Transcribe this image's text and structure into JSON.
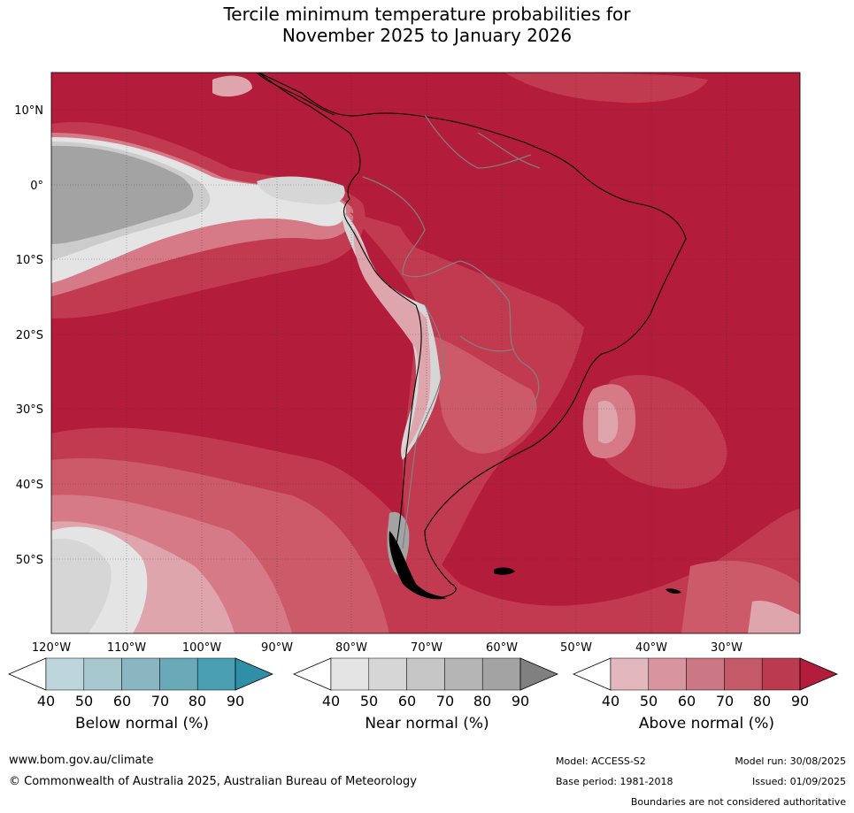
{
  "title": {
    "line1": "Tercile minimum temperature probabilities for",
    "line2": "November 2025 to January 2026"
  },
  "map": {
    "lat_labels": [
      "10°N",
      "0°",
      "10°S",
      "20°S",
      "30°S",
      "40°S",
      "50°S"
    ],
    "lon_labels": [
      "120°W",
      "110°W",
      "100°W",
      "90°W",
      "80°W",
      "70°W",
      "60°W",
      "50°W",
      "40°W",
      "30°W"
    ],
    "lat_values": [
      10,
      0,
      -10,
      -20,
      -30,
      -40,
      -50
    ],
    "lon_values": [
      -120,
      -110,
      -100,
      -90,
      -80,
      -70,
      -60,
      -50,
      -40,
      -30
    ],
    "lon_range": [
      -120,
      -20
    ],
    "lat_range": [
      -60,
      15
    ],
    "dominant_category": "Above normal",
    "colors": {
      "above_90": "#b31c3b",
      "above_80": "#c23a50",
      "above_70": "#cc5a69",
      "above_60": "#d67a87",
      "above_50": "#dfa5ad",
      "near_90": "#a3a3a3",
      "near_60": "#cccccc",
      "near_40": "#e4e4e4",
      "coast": "#000000",
      "border": "#808080"
    }
  },
  "colorbars": [
    {
      "label": "Below normal (%)",
      "ticks": [
        "40",
        "50",
        "60",
        "70",
        "80",
        "90"
      ],
      "colors": [
        "#ffffff",
        "#bdd6dc",
        "#a7c8cf",
        "#8ab6c2",
        "#6aa9b7",
        "#4aa0b2",
        "#2f8fa6"
      ]
    },
    {
      "label": "Near normal (%)",
      "ticks": [
        "40",
        "50",
        "60",
        "70",
        "80",
        "90"
      ],
      "colors": [
        "#ffffff",
        "#e4e4e4",
        "#d6d6d6",
        "#c6c6c6",
        "#b5b5b5",
        "#a3a3a3",
        "#808080"
      ]
    },
    {
      "label": "Above normal (%)",
      "ticks": [
        "40",
        "50",
        "60",
        "70",
        "80",
        "90"
      ],
      "colors": [
        "#ffffff",
        "#e2b7bd",
        "#d8959f",
        "#cc7784",
        "#c45a68",
        "#bb3a4f",
        "#b31c3b"
      ]
    }
  ],
  "footer": {
    "url": "www.bom.gov.au/climate",
    "copyright": "© Commonwealth of Australia 2025, Australian Bureau of Meteorology",
    "model": "Model: ACCESS-S2",
    "base_period": "Base period: 1981-2018",
    "model_run": "Model run: 30/08/2025",
    "issued": "Issued: 01/09/2025",
    "disclaimer": "Boundaries are not considered authoritative"
  }
}
